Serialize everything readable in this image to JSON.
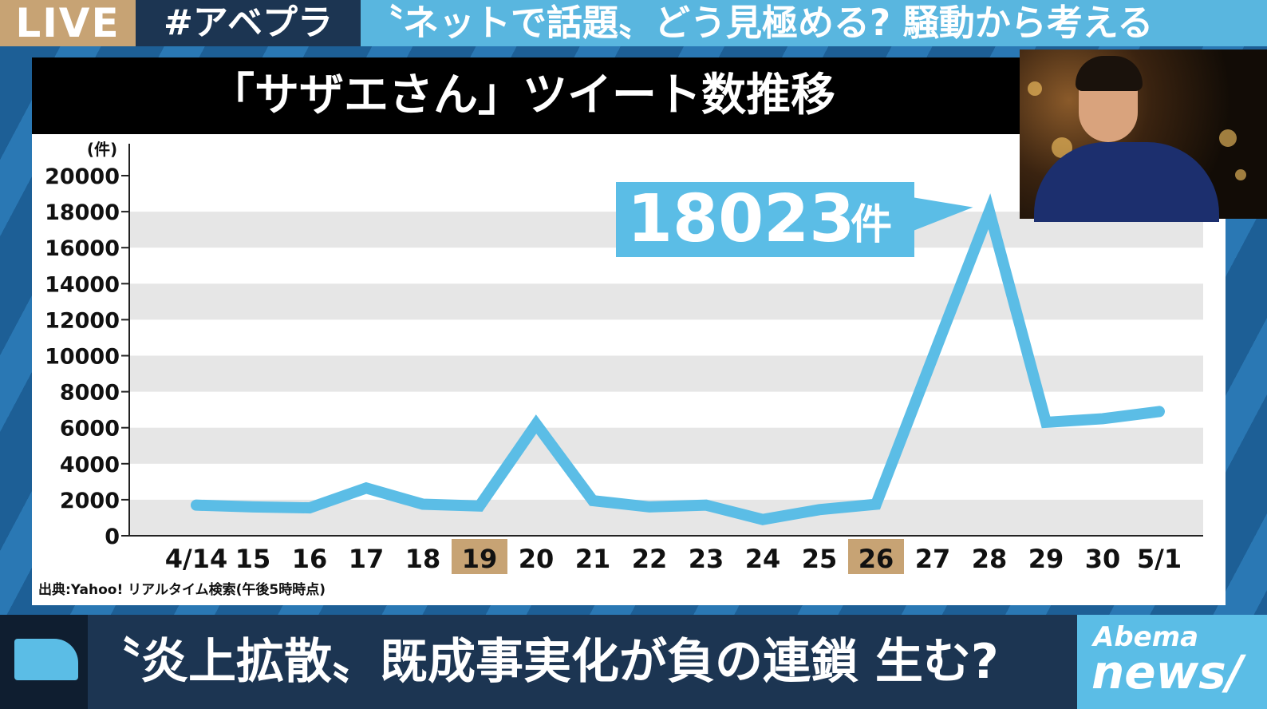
{
  "header": {
    "live_label": "LIVE",
    "program_tag": "#アベプラ",
    "headline": "〝ネットで話題〟どう見極める? 騒動から考える"
  },
  "chart_data": {
    "type": "line",
    "title": "「サザエさん」ツイート数推移",
    "ylabel": "(件)",
    "xlabel": "",
    "ylim": [
      0,
      20000
    ],
    "yticks": [
      "0",
      "2000",
      "4000",
      "6000",
      "8000",
      "10000",
      "12000",
      "14000",
      "16000",
      "18000",
      "20000"
    ],
    "categories": [
      "4/14",
      "15",
      "16",
      "17",
      "18",
      "19",
      "20",
      "21",
      "22",
      "23",
      "24",
      "25",
      "26",
      "27",
      "28",
      "29",
      "30",
      "5/1"
    ],
    "highlighted_categories": [
      "19",
      "26"
    ],
    "values": [
      1700,
      1600,
      1550,
      2650,
      1750,
      1650,
      6200,
      1950,
      1600,
      1700,
      900,
      1450,
      1750,
      9900,
      18023,
      6300,
      6500,
      6900
    ],
    "grid": "horizontal-bands",
    "line_color": "#5bbde6",
    "highlight_color": "#c7a374",
    "annotation": {
      "value": "18023",
      "unit": "件",
      "target_category": "28"
    },
    "source": "出典:Yahoo! リアルタイム検索(午後5時時点)"
  },
  "caption": {
    "text": "〝炎上拡散〟既成事実化が負の連鎖 生む?"
  },
  "brand": {
    "line1": "Abema",
    "line2": "news/"
  },
  "colors": {
    "accent_blue": "#5bbde6",
    "navy": "#1c3552",
    "gold": "#c7a374"
  }
}
